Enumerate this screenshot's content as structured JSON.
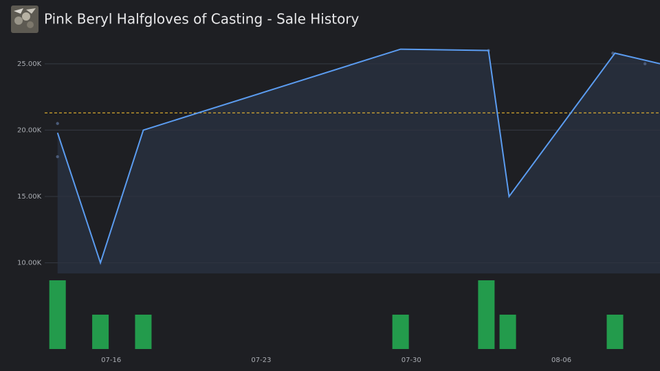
{
  "title": "Pink Beryl Halfgloves of Casting - Sale History",
  "chart_data": [
    {
      "type": "line",
      "x": [
        13.5,
        15.5,
        17.5,
        29.5,
        33.6,
        34.56,
        39.5,
        41.6
      ],
      "values": [
        19800,
        10000,
        20000,
        26100,
        26000,
        15000,
        25800,
        25000
      ],
      "color": "#5b9cf0",
      "area_color": "#262d3a",
      "points": {
        "x": [
          13.5,
          13.5,
          33.6,
          39.4,
          40.9
        ],
        "values": [
          20500,
          18000,
          26000,
          25800,
          25000
        ],
        "color": "#4a5a78"
      },
      "reference_line": {
        "value": 21300,
        "color": "#e8b631"
      },
      "xlim": [
        12.9,
        41.6
      ],
      "ylim": [
        9200,
        26700
      ],
      "yticks": [
        {
          "value": 10000,
          "label": "10.00K"
        },
        {
          "value": 15000,
          "label": "15.00K"
        },
        {
          "value": 20000,
          "label": "20.00K"
        },
        {
          "value": 25000,
          "label": "25.00K"
        }
      ],
      "grid": true
    },
    {
      "type": "bar",
      "x": [
        13.5,
        15.5,
        17.5,
        29.5,
        33.5,
        34.5,
        39.5
      ],
      "values": [
        2,
        1,
        1,
        1,
        2,
        1,
        1
      ],
      "color": "#239b4c",
      "xlim": [
        12.9,
        41.6
      ],
      "ylim": [
        0,
        2
      ],
      "xticks": [
        {
          "value": 16,
          "label": "07-16"
        },
        {
          "value": 23,
          "label": "07-23"
        },
        {
          "value": 30,
          "label": "07-30"
        },
        {
          "value": 37,
          "label": "08-06"
        }
      ]
    }
  ]
}
